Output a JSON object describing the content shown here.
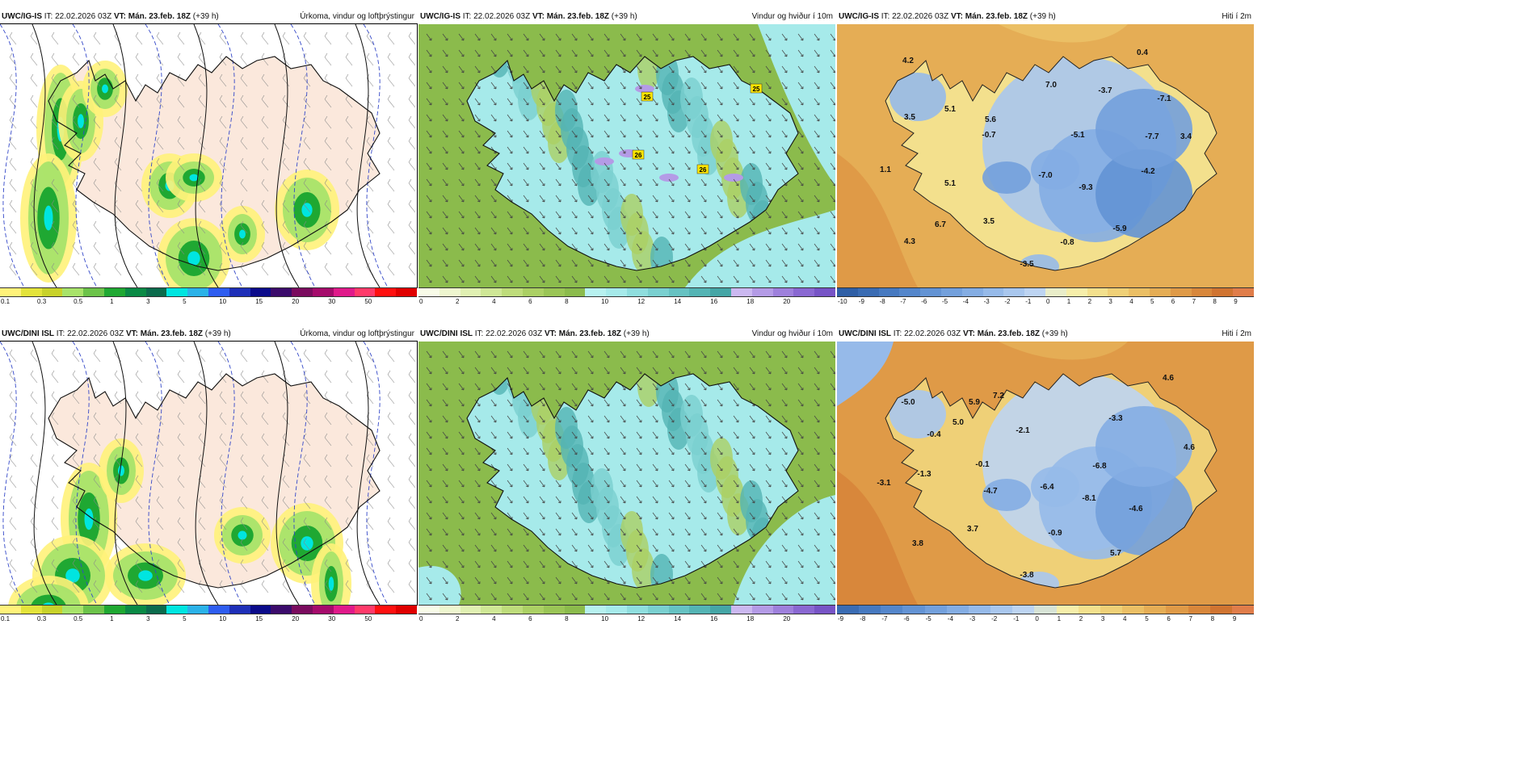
{
  "panels": [
    {
      "id": "p1",
      "model": "UWC/IG-IS",
      "it_label": "IT:",
      "it": "22.02.2026 03Z",
      "vt_label": "VT:",
      "vt": "Mán. 23.feb. 18Z",
      "lead": "(+39 h)",
      "title": "Úrkoma, vindur og loftþrýstingur",
      "type": "precip",
      "ticks": [
        "0.1",
        "0.3",
        "0.5",
        "1",
        "3",
        "5",
        "10",
        "15",
        "20",
        "30",
        "50"
      ],
      "colors": [
        "#fff27a",
        "#e3e33b",
        "#c8d22a",
        "#a8e36a",
        "#6cc34a",
        "#1fa832",
        "#0a8a45",
        "#0b6b4c",
        "#00e5e0",
        "#2bb2e8",
        "#2e5df0",
        "#1e2fb8",
        "#0b0b8a",
        "#3b0b6b",
        "#7a0b5e",
        "#a50b6b",
        "#e01a8a",
        "#ff3a6a",
        "#ff1010",
        "#e00000"
      ],
      "labels": []
    },
    {
      "id": "p2",
      "model": "UWC/IG-IS",
      "it_label": "IT:",
      "it": "22.02.2026 03Z",
      "vt_label": "VT:",
      "vt": "Mán. 23.feb. 18Z",
      "lead": "(+39 h)",
      "title": "Vindur og hviður í 10m",
      "type": "wind",
      "ticks": [
        "0",
        "2",
        "4",
        "6",
        "8",
        "10",
        "12",
        "14",
        "16",
        "18",
        "20"
      ],
      "colors": [
        "#f8fbe8",
        "#eef6cf",
        "#e0f0b2",
        "#cfe796",
        "#bedc7b",
        "#abd064",
        "#9ac556",
        "#8bbb4c",
        "#b7f1ef",
        "#a6eaea",
        "#8fdede",
        "#7ad0d0",
        "#66c2c2",
        "#54b4b4",
        "#45a6a6",
        "#cbb8f0",
        "#b49be6",
        "#9e80dc",
        "#8a68d2",
        "#7754c6"
      ],
      "badges": [
        "25",
        "25",
        "26",
        "26"
      ]
    },
    {
      "id": "p3",
      "model": "UWC/IG-IS",
      "it_label": "IT:",
      "it": "22.02.2026 03Z",
      "vt_label": "VT:",
      "vt": "Mán. 23.feb. 18Z",
      "lead": "(+39 h)",
      "title": "Hiti í 2m",
      "type": "temp",
      "ticks": [
        "-10",
        "-9",
        "-8",
        "-7",
        "-6",
        "-5",
        "-4",
        "-3",
        "-2",
        "-1",
        "0",
        "1",
        "2",
        "3",
        "4",
        "5",
        "6",
        "7",
        "8",
        "9"
      ],
      "colors": [
        "#2f5fa6",
        "#3a6cb3",
        "#4679c0",
        "#5486cb",
        "#6393d4",
        "#73a0dc",
        "#84ade3",
        "#96bae9",
        "#a9c7ee",
        "#bdd4f2",
        "#e9edc9",
        "#f6eeaa",
        "#f3e08d",
        "#efd077",
        "#ebbf65",
        "#e5ad55",
        "#df9a47",
        "#d8873b",
        "#d07431",
        "#e07d4a"
      ],
      "labels": [
        "0.4",
        "4.2",
        "7.0",
        "-3.7",
        "-7.1",
        "3.5",
        "5.1",
        "5.6",
        "-0.7",
        "-5.1",
        "-7.7",
        "3.4",
        "1.1",
        "5.1",
        "-7.0",
        "-9.3",
        "-4.2",
        "6.7",
        "3.5",
        "-5.9",
        "4.3",
        "-0.8",
        "-3.5"
      ]
    },
    {
      "id": "p4",
      "model": "UWC/DINI ISL",
      "it_label": "IT:",
      "it": "22.02.2026 03Z",
      "vt_label": "VT:",
      "vt": "Mán. 23.feb. 18Z",
      "lead": "(+39 h)",
      "title": "Úrkoma, vindur og loftþrýstingur",
      "type": "precip",
      "ticks": [
        "0.1",
        "0.3",
        "0.5",
        "1",
        "3",
        "5",
        "10",
        "15",
        "20",
        "30",
        "50"
      ],
      "colors": [
        "#fff27a",
        "#e3e33b",
        "#c8d22a",
        "#a8e36a",
        "#6cc34a",
        "#1fa832",
        "#0a8a45",
        "#0b6b4c",
        "#00e5e0",
        "#2bb2e8",
        "#2e5df0",
        "#1e2fb8",
        "#0b0b8a",
        "#3b0b6b",
        "#7a0b5e",
        "#a50b6b",
        "#e01a8a",
        "#ff3a6a",
        "#ff1010",
        "#e00000"
      ],
      "labels": []
    },
    {
      "id": "p5",
      "model": "UWC/DINI ISL",
      "it_label": "IT:",
      "it": "22.02.2026 03Z",
      "vt_label": "VT:",
      "vt": "Mán. 23.feb. 18Z",
      "lead": "(+39 h)",
      "title": "Vindur og hviður í 10m",
      "type": "wind",
      "ticks": [
        "0",
        "2",
        "4",
        "6",
        "8",
        "10",
        "12",
        "14",
        "16",
        "18",
        "20"
      ],
      "colors": [
        "#f8fbe8",
        "#eef6cf",
        "#e0f0b2",
        "#cfe796",
        "#bedc7b",
        "#abd064",
        "#9ac556",
        "#8bbb4c",
        "#b7f1ef",
        "#a6eaea",
        "#8fdede",
        "#7ad0d0",
        "#66c2c2",
        "#54b4b4",
        "#45a6a6",
        "#cbb8f0",
        "#b49be6",
        "#9e80dc",
        "#8a68d2",
        "#7754c6"
      ],
      "badges": []
    },
    {
      "id": "p6",
      "model": "UWC/DINI ISL",
      "it_label": "IT:",
      "it": "22.02.2026 03Z",
      "vt_label": "VT:",
      "vt": "Mán. 23.feb. 18Z",
      "lead": "(+39 h)",
      "title": "Hiti í 2m",
      "type": "temp",
      "ticks": [
        "-9",
        "-8",
        "-7",
        "-6",
        "-5",
        "-4",
        "-3",
        "-2",
        "-1",
        "0",
        "1",
        "2",
        "3",
        "4",
        "5",
        "6",
        "7",
        "8",
        "9"
      ],
      "colors": [
        "#3a6cb3",
        "#4679c0",
        "#5486cb",
        "#6393d4",
        "#73a0dc",
        "#84ade3",
        "#96bae9",
        "#a9c7ee",
        "#bdd4f2",
        "#d7e3d6",
        "#f6eeaa",
        "#f3e08d",
        "#efd077",
        "#ebbf65",
        "#e5ad55",
        "#df9a47",
        "#d8873b",
        "#d07431",
        "#e07d4a"
      ],
      "labels": [
        "4.6",
        "-5.0",
        "5.9",
        "7.2",
        "5.0",
        "-2.1",
        "-3.3",
        "-0.4",
        "4.6",
        "-0.1",
        "-6.8",
        "-3.1",
        "-1.3",
        "-4.7",
        "-6.4",
        "-8.1",
        "-4.6",
        "3.7",
        "-0.9",
        "3.8",
        "5.7",
        "-3.8"
      ]
    }
  ]
}
